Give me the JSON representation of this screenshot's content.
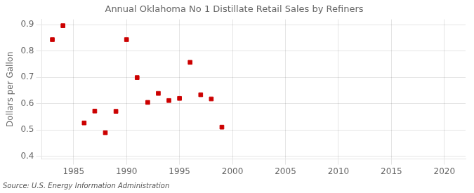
{
  "chart_data": {
    "type": "scatter",
    "title": "Annual Oklahoma No 1 Distillate Retail Sales by Refiners",
    "ylabel": "Dollars per Gallon",
    "source": "Source: U.S. Energy Information Administration",
    "x": [
      1983,
      1984,
      1986,
      1987,
      1988,
      1989,
      1990,
      1991,
      1992,
      1993,
      1994,
      1995,
      1996,
      1997,
      1998,
      1999
    ],
    "values": [
      0.843,
      0.896,
      0.527,
      0.572,
      0.49,
      0.571,
      0.843,
      0.699,
      0.605,
      0.639,
      0.612,
      0.62,
      0.757,
      0.634,
      0.618,
      0.511
    ],
    "color": "#cc0000",
    "marker": "square",
    "xlim": [
      1982,
      2022
    ],
    "ylim": [
      0.39,
      0.92
    ],
    "xticks": [
      1985,
      1990,
      1995,
      2000,
      2005,
      2010,
      2015,
      2020
    ],
    "yticks": [
      0.4,
      0.5,
      0.6,
      0.7,
      0.8,
      0.9
    ],
    "grid": true
  }
}
